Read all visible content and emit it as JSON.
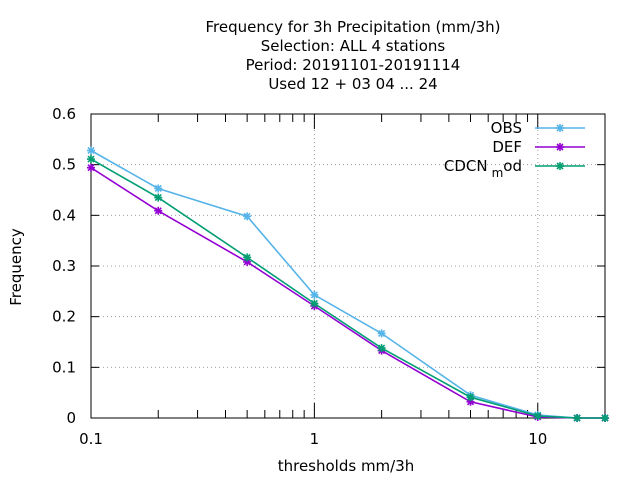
{
  "chart_data": {
    "type": "line",
    "title": [
      "Frequency  for 3h Precipitation (mm/3h)",
      "Selection: ALL      4 stations",
      "Period: 20191101-20191114",
      "Used  12 + 03 04 ... 24"
    ],
    "xlabel": "thresholds mm/3h",
    "ylabel": "Frequency",
    "xscale": "log",
    "xlim": [
      0.1,
      20
    ],
    "ylim": [
      0,
      0.6
    ],
    "x": [
      0.1,
      0.2,
      0.5,
      1,
      2,
      5,
      10,
      15,
      20
    ],
    "x_ticks": [
      0.1,
      1,
      10
    ],
    "x_tick_labels": [
      "0.1",
      "1",
      "10"
    ],
    "y_ticks": [
      0,
      0.1,
      0.2,
      0.3,
      0.4,
      0.5,
      0.6
    ],
    "y_tick_labels": [
      "0",
      "0.1",
      "0.2",
      "0.3",
      "0.4",
      "0.5",
      "0.6"
    ],
    "grid": true,
    "legend_position": "top-right",
    "series": [
      {
        "name": "OBS",
        "color": "#56b4e9",
        "values": [
          0.528,
          0.453,
          0.398,
          0.243,
          0.167,
          0.045,
          0.006,
          0.0,
          0.0
        ]
      },
      {
        "name": "DEF",
        "color": "#9400d3",
        "values": [
          0.494,
          0.409,
          0.308,
          0.221,
          0.133,
          0.032,
          0.002,
          0.0,
          0.0
        ]
      },
      {
        "name": "CDCN_mod",
        "color": "#009e73",
        "values": [
          0.511,
          0.435,
          0.317,
          0.226,
          0.138,
          0.041,
          0.004,
          0.0,
          0.0
        ]
      }
    ]
  }
}
